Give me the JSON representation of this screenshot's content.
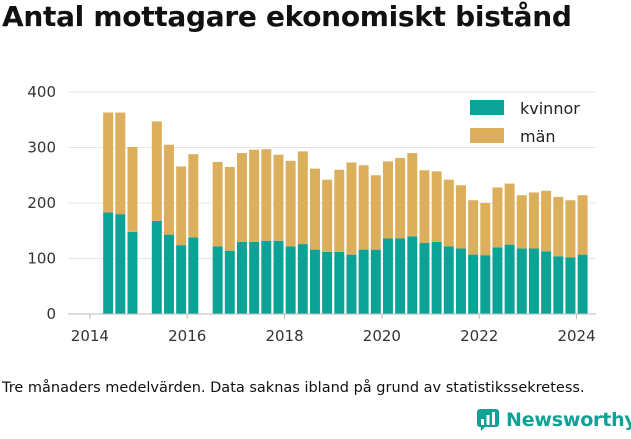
{
  "title": "Antal mottagare ekonomiskt bistånd",
  "footnote": "Tre månaders medelvärden. Data saknas ibland på grund av statistikssekretess.",
  "brand": {
    "name": "Newsworthy",
    "icon": "newsworthy-chart-icon"
  },
  "colors": {
    "kvinnor": "#0aa396",
    "man": "#dcaf5c",
    "grid": "#e6e6e6"
  },
  "chart_data": {
    "type": "bar",
    "stacked": true,
    "title": "Antal mottagare ekonomiskt bistånd",
    "xlabel": "",
    "ylabel": "",
    "ylim": [
      0,
      400
    ],
    "yticks": [
      0,
      100,
      200,
      300,
      400
    ],
    "xlim": [
      2013.55,
      2024.4
    ],
    "xticks": [
      2014,
      2016,
      2018,
      2020,
      2022,
      2024
    ],
    "grid": "horizontal",
    "legend_position": "top-right",
    "x": [
      2014.375,
      2014.625,
      2014.875,
      2015.375,
      2015.625,
      2015.875,
      2016.125,
      2016.625,
      2016.875,
      2017.125,
      2017.375,
      2017.625,
      2017.875,
      2018.125,
      2018.375,
      2018.625,
      2018.875,
      2019.125,
      2019.375,
      2019.625,
      2019.875,
      2020.125,
      2020.375,
      2020.625,
      2020.875,
      2021.125,
      2021.375,
      2021.625,
      2021.875,
      2022.125,
      2022.375,
      2022.625,
      2022.875,
      2023.125,
      2023.375,
      2023.625,
      2023.875,
      2024.125
    ],
    "series": [
      {
        "name": "kvinnor",
        "color": "#0aa396",
        "values": [
          183,
          180,
          148,
          168,
          143,
          124,
          138,
          122,
          114,
          130,
          130,
          132,
          132,
          122,
          126,
          116,
          112,
          112,
          107,
          116,
          116,
          136,
          136,
          140,
          128,
          130,
          122,
          118,
          107,
          106,
          120,
          125,
          118,
          118,
          113,
          104,
          102,
          107
        ]
      },
      {
        "name": "män",
        "color": "#dcaf5c",
        "values": [
          180,
          183,
          153,
          179,
          162,
          142,
          150,
          152,
          151,
          160,
          166,
          165,
          155,
          154,
          167,
          146,
          130,
          148,
          166,
          152,
          134,
          139,
          145,
          150,
          131,
          127,
          120,
          114,
          98,
          94,
          108,
          110,
          96,
          101,
          109,
          107,
          103,
          107
        ]
      }
    ]
  }
}
